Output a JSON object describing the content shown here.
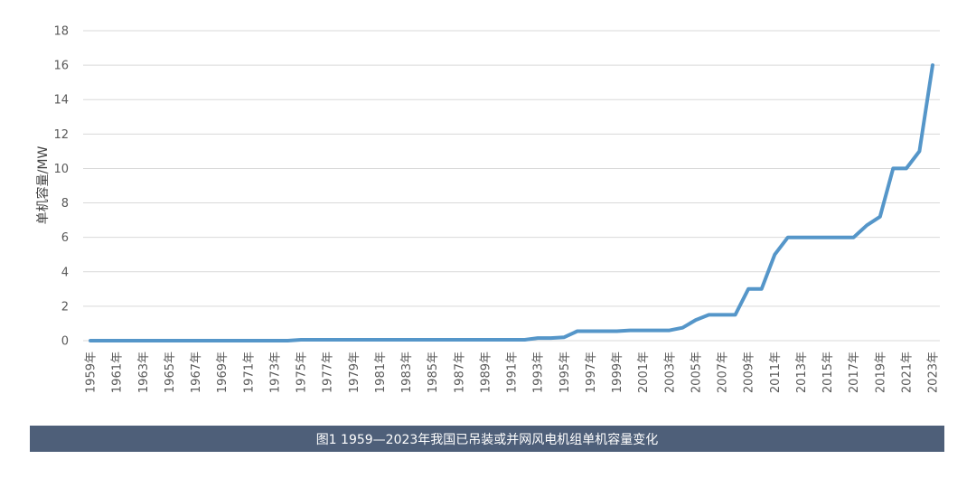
{
  "chart_data": {
    "type": "line",
    "title": "",
    "ylabel": "单机容量/MW",
    "xlabel": "",
    "ylim": [
      0,
      18
    ],
    "yticks": [
      0,
      2,
      4,
      6,
      8,
      10,
      12,
      14,
      16,
      18
    ],
    "grid": true,
    "line_color": "#5596c9",
    "grid_color": "#d9d9d9",
    "x_start_year": 1959,
    "x_end_year": 2023,
    "tick_labels": [
      "1959年",
      "1961年",
      "1963年",
      "1965年",
      "1967年",
      "1969年",
      "1971年",
      "1973年",
      "1975年",
      "1977年",
      "1979年",
      "1981年",
      "1983年",
      "1985年",
      "1987年",
      "1989年",
      "1991年",
      "1993年",
      "1995年",
      "1997年",
      "1999年",
      "2001年",
      "2003年",
      "2005年",
      "2007年",
      "2009年",
      "2011年",
      "2013年",
      "2015年",
      "2017年",
      "2019年",
      "2021年",
      "2023年"
    ],
    "points": [
      {
        "x": 1959,
        "y": 0
      },
      {
        "x": 1974,
        "y": 0
      },
      {
        "x": 1975,
        "y": 0.05
      },
      {
        "x": 1992,
        "y": 0.05
      },
      {
        "x": 1993,
        "y": 0.15
      },
      {
        "x": 1994,
        "y": 0.15
      },
      {
        "x": 1995,
        "y": 0.2
      },
      {
        "x": 1996,
        "y": 0.55
      },
      {
        "x": 1999,
        "y": 0.55
      },
      {
        "x": 2000,
        "y": 0.6
      },
      {
        "x": 2003,
        "y": 0.6
      },
      {
        "x": 2004,
        "y": 0.75
      },
      {
        "x": 2005,
        "y": 1.2
      },
      {
        "x": 2006,
        "y": 1.5
      },
      {
        "x": 2008,
        "y": 1.5
      },
      {
        "x": 2009,
        "y": 3.0
      },
      {
        "x": 2010,
        "y": 3.0
      },
      {
        "x": 2011,
        "y": 5.0
      },
      {
        "x": 2012,
        "y": 6.0
      },
      {
        "x": 2017,
        "y": 6.0
      },
      {
        "x": 2018,
        "y": 6.7
      },
      {
        "x": 2019,
        "y": 7.2
      },
      {
        "x": 2020,
        "y": 10.0
      },
      {
        "x": 2021,
        "y": 10.0
      },
      {
        "x": 2022,
        "y": 11.0
      },
      {
        "x": 2023,
        "y": 16.0
      }
    ]
  },
  "caption": {
    "text": "图1 1959—2023年我国已吊装或并网风电机组单机容量变化",
    "background": "#4e5f79"
  }
}
